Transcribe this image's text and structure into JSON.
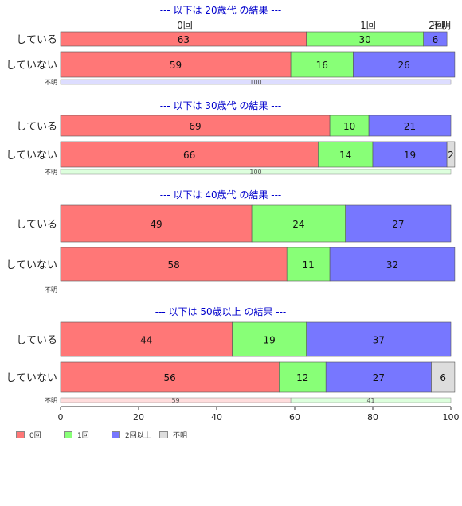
{
  "chart_data": {
    "type": "bar",
    "orientation": "horizontal",
    "stacked": true,
    "xlim": [
      0,
      100
    ],
    "xticks": [
      "0",
      "20",
      "40",
      "60",
      "80",
      "100"
    ],
    "colors": {
      "0回": "#ff7777",
      "1回": "#88ff77",
      "2回以上": "#7777ff",
      "不明": "#dddddd",
      "text_title": "#0000cc"
    },
    "categories_legend": [
      "0回",
      "1回",
      "2回以上",
      "不明"
    ],
    "top_header_labels": [
      "0回",
      "1回",
      "2回",
      "不明"
    ],
    "groups": [
      {
        "title": "--- 以下は 20歳代 の結果 ---",
        "rows": [
          {
            "label": "している",
            "values": [
              63,
              30,
              6,
              0
            ]
          },
          {
            "label": "していない",
            "values": [
              59,
              16,
              26,
              0
            ]
          }
        ],
        "unknown": {
          "label": "不明",
          "values": [
            0,
            0,
            100,
            0
          ],
          "value_labels": [
            "",
            "",
            "100",
            ""
          ],
          "color": "#ddddff"
        }
      },
      {
        "title": "--- 以下は 30歳代 の結果 ---",
        "rows": [
          {
            "label": "している",
            "values": [
              69,
              10,
              21,
              0
            ]
          },
          {
            "label": "していない",
            "values": [
              66,
              14,
              19,
              2
            ]
          }
        ],
        "unknown": {
          "label": "不明",
          "values": [
            0,
            100,
            0,
            0
          ],
          "value_labels": [
            "",
            "100",
            "",
            ""
          ],
          "color": "#ddffdd"
        }
      },
      {
        "title": "--- 以下は 40歳代 の結果 ---",
        "rows": [
          {
            "label": "している",
            "values": [
              49,
              24,
              27,
              0
            ]
          },
          {
            "label": "していない",
            "values": [
              58,
              11,
              32,
              0
            ]
          }
        ],
        "unknown": {
          "label": "不明",
          "values": [],
          "value_labels": [],
          "color": ""
        }
      },
      {
        "title": "--- 以下は 50歳以上 の結果 ---",
        "rows": [
          {
            "label": "している",
            "values": [
              44,
              19,
              37,
              0
            ]
          },
          {
            "label": "していない",
            "values": [
              56,
              12,
              27,
              6
            ]
          }
        ],
        "unknown": {
          "label": "不明",
          "values": [
            59,
            41,
            0,
            0
          ],
          "value_labels": [
            "59",
            "41",
            "",
            ""
          ],
          "color": "mixed"
        }
      }
    ]
  }
}
